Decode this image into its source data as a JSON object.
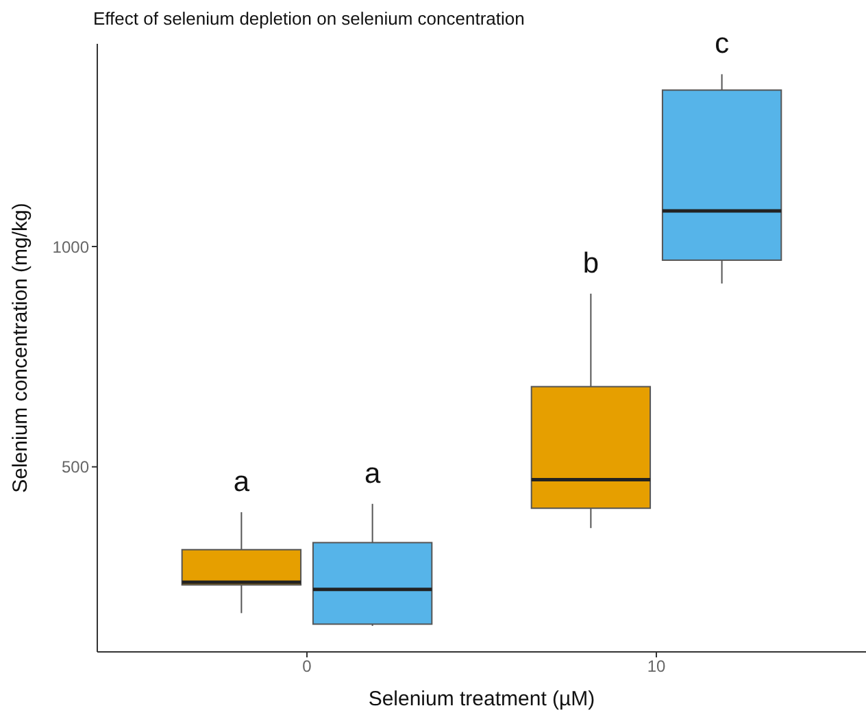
{
  "chart_data": {
    "type": "box",
    "title": "Effect of selenium depletion on selenium concentration",
    "xlabel": "Selenium treatment (µM)",
    "ylabel": "Selenium concentration (mg/kg)",
    "categories": [
      "0",
      "10"
    ],
    "series": [
      {
        "color": "#e69f00",
        "boxes": [
          {
            "low": 168,
            "q1": 232,
            "median": 238,
            "q3": 312,
            "high": 397
          },
          {
            "low": 361,
            "q1": 406,
            "median": 471,
            "q3": 682,
            "high": 893
          }
        ]
      },
      {
        "color": "#56b4e9",
        "boxes": [
          {
            "low": 139,
            "q1": 143,
            "median": 222,
            "q3": 328,
            "high": 416
          },
          {
            "low": 916,
            "q1": 969,
            "median": 1081,
            "q3": 1355,
            "high": 1391
          }
        ]
      }
    ],
    "ylim": [
      80,
      1460
    ],
    "yticks": [
      500,
      1000
    ],
    "grid": false,
    "annotations": [
      "a",
      "a",
      "b",
      "c"
    ]
  }
}
